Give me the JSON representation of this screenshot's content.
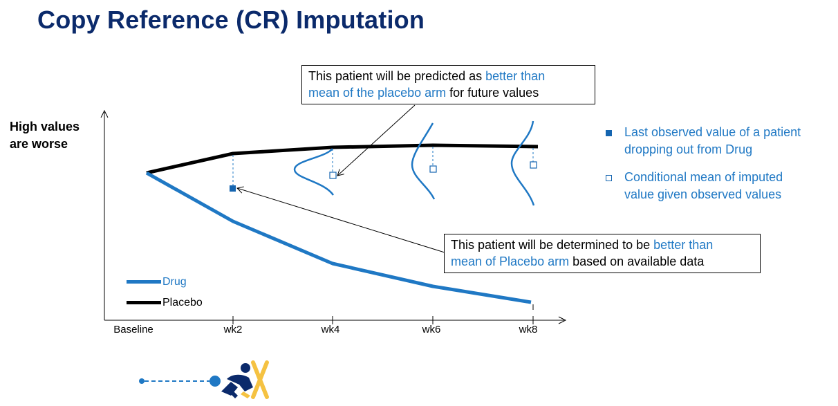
{
  "title": "Copy Reference (CR) Imputation",
  "y_axis_label_lines": [
    "High values",
    "are worse"
  ],
  "x_ticks": [
    "Baseline",
    "wk2",
    "wk4",
    "wk6",
    "wk8"
  ],
  "colors": {
    "title": "#0b2a6b",
    "drug": "#1f78c4",
    "placebo": "#000000",
    "highlight": "#1f78c4",
    "marker": "#1565b0",
    "icon_person": "#0b2a6b",
    "icon_x": "#f5c242"
  },
  "series": [
    {
      "name": "Drug",
      "color": "#1f78c4"
    },
    {
      "name": "Placebo",
      "color": "#000000"
    }
  ],
  "callout_top": {
    "line1_plain": "This patient will be predicted as ",
    "line1_highlight": "better than",
    "line2_highlight": "mean of the placebo arm",
    "line2_plain": " for future values"
  },
  "callout_bottom": {
    "line1_plain": "This patient will be determined to be ",
    "line1_highlight": "better than",
    "line2_highlight": "mean of Placebo arm",
    "line2_plain": " based on available data"
  },
  "legend_markers": [
    {
      "icon": "filled-square-icon",
      "lines": [
        "Last observed value of a patient",
        "dropping out from Drug"
      ]
    },
    {
      "icon": "open-square-icon",
      "lines": [
        "Conditional mean of imputed",
        "value given observed values"
      ]
    }
  ],
  "dropout_icon": {
    "icons": [
      "timeline-icon",
      "falling-person-icon",
      "cross-icon"
    ]
  }
}
